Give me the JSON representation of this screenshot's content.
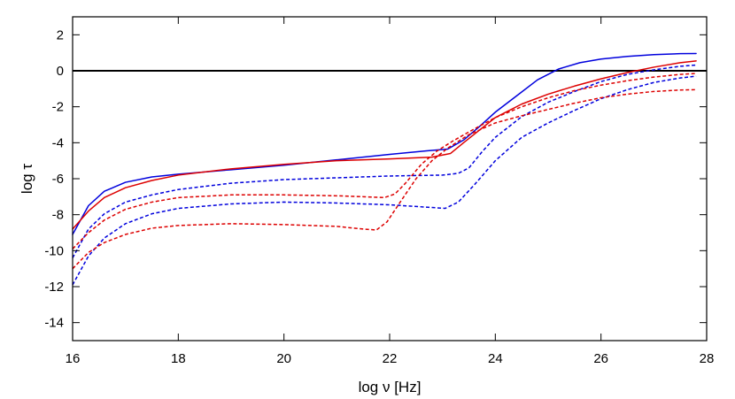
{
  "chart_data": {
    "type": "line",
    "title": "",
    "xlabel": "log ν [Hz]",
    "ylabel": "log τ",
    "xlim": [
      16,
      28
    ],
    "ylim": [
      -15,
      3
    ],
    "xticks": [
      16,
      18,
      20,
      22,
      24,
      26,
      28
    ],
    "yticks": [
      2,
      0,
      -2,
      -4,
      -6,
      -8,
      -10,
      -12,
      -14
    ],
    "xtick_labels": [
      "16",
      "18",
      "20",
      "22",
      "24",
      "26",
      "28"
    ],
    "ytick_labels": [
      "2",
      "0",
      "-2",
      "-4",
      "-6",
      "-8",
      "-10",
      "-12",
      "-14"
    ],
    "grid": false,
    "legend": "none",
    "reference_line": {
      "y": 0,
      "color": "#000000"
    },
    "series": [
      {
        "color": "#0000dd",
        "style": "solid",
        "points": [
          [
            16,
            -9.1
          ],
          [
            16.3,
            -7.5
          ],
          [
            16.6,
            -6.7
          ],
          [
            17,
            -6.2
          ],
          [
            17.5,
            -5.9
          ],
          [
            18,
            -5.75
          ],
          [
            19,
            -5.5
          ],
          [
            20,
            -5.25
          ],
          [
            21,
            -4.95
          ],
          [
            22,
            -4.65
          ],
          [
            22.7,
            -4.45
          ],
          [
            23.1,
            -4.35
          ],
          [
            23.4,
            -3.85
          ],
          [
            23.7,
            -3.1
          ],
          [
            24,
            -2.3
          ],
          [
            24.4,
            -1.4
          ],
          [
            24.8,
            -0.5
          ],
          [
            25.2,
            0.1
          ],
          [
            25.6,
            0.45
          ],
          [
            26,
            0.65
          ],
          [
            26.5,
            0.8
          ],
          [
            27,
            0.9
          ],
          [
            27.5,
            0.95
          ],
          [
            27.8,
            0.96
          ]
        ]
      },
      {
        "color": "#dd0000",
        "style": "solid",
        "points": [
          [
            16,
            -8.8
          ],
          [
            16.3,
            -7.8
          ],
          [
            16.6,
            -7.05
          ],
          [
            17,
            -6.5
          ],
          [
            17.5,
            -6.1
          ],
          [
            18,
            -5.8
          ],
          [
            19,
            -5.45
          ],
          [
            20,
            -5.2
          ],
          [
            21,
            -5.0
          ],
          [
            22,
            -4.9
          ],
          [
            22.8,
            -4.8
          ],
          [
            23.15,
            -4.6
          ],
          [
            23.4,
            -4.0
          ],
          [
            23.7,
            -3.3
          ],
          [
            24,
            -2.6
          ],
          [
            24.5,
            -1.85
          ],
          [
            25,
            -1.3
          ],
          [
            25.5,
            -0.85
          ],
          [
            26,
            -0.45
          ],
          [
            26.5,
            -0.1
          ],
          [
            27,
            0.2
          ],
          [
            27.5,
            0.45
          ],
          [
            27.8,
            0.55
          ]
        ]
      },
      {
        "color": "#0000dd",
        "style": "dashed",
        "points": [
          [
            16,
            -10.4
          ],
          [
            16.3,
            -8.8
          ],
          [
            16.6,
            -7.95
          ],
          [
            17,
            -7.3
          ],
          [
            17.5,
            -6.9
          ],
          [
            18,
            -6.6
          ],
          [
            19,
            -6.25
          ],
          [
            20,
            -6.05
          ],
          [
            21,
            -5.95
          ],
          [
            22,
            -5.85
          ],
          [
            23,
            -5.8
          ],
          [
            23.3,
            -5.7
          ],
          [
            23.5,
            -5.4
          ],
          [
            23.75,
            -4.5
          ],
          [
            24,
            -3.7
          ],
          [
            24.5,
            -2.55
          ],
          [
            25,
            -1.75
          ],
          [
            25.5,
            -1.15
          ],
          [
            26,
            -0.6
          ],
          [
            26.5,
            -0.2
          ],
          [
            27,
            0.05
          ],
          [
            27.5,
            0.25
          ],
          [
            27.8,
            0.32
          ]
        ]
      },
      {
        "color": "#dd0000",
        "style": "dashed",
        "points": [
          [
            16,
            -9.9
          ],
          [
            16.3,
            -9.0
          ],
          [
            16.6,
            -8.3
          ],
          [
            17,
            -7.7
          ],
          [
            17.5,
            -7.3
          ],
          [
            18,
            -7.05
          ],
          [
            19,
            -6.9
          ],
          [
            20,
            -6.9
          ],
          [
            21,
            -6.95
          ],
          [
            21.5,
            -7.0
          ],
          [
            21.9,
            -7.05
          ],
          [
            22.1,
            -6.85
          ],
          [
            22.3,
            -6.25
          ],
          [
            22.6,
            -5.2
          ],
          [
            22.9,
            -4.45
          ],
          [
            23.2,
            -3.9
          ],
          [
            23.5,
            -3.4
          ],
          [
            24,
            -2.6
          ],
          [
            24.5,
            -2.0
          ],
          [
            25,
            -1.5
          ],
          [
            25.5,
            -1.1
          ],
          [
            26,
            -0.8
          ],
          [
            26.5,
            -0.55
          ],
          [
            27,
            -0.35
          ],
          [
            27.5,
            -0.2
          ],
          [
            27.8,
            -0.15
          ]
        ]
      },
      {
        "color": "#0000dd",
        "style": "dashed",
        "points": [
          [
            16,
            -11.9
          ],
          [
            16.3,
            -10.3
          ],
          [
            16.6,
            -9.3
          ],
          [
            17,
            -8.5
          ],
          [
            17.5,
            -7.95
          ],
          [
            18,
            -7.65
          ],
          [
            19,
            -7.4
          ],
          [
            20,
            -7.3
          ],
          [
            21,
            -7.35
          ],
          [
            22,
            -7.45
          ],
          [
            22.8,
            -7.6
          ],
          [
            23.05,
            -7.65
          ],
          [
            23.3,
            -7.3
          ],
          [
            23.6,
            -6.35
          ],
          [
            24,
            -5.0
          ],
          [
            24.5,
            -3.7
          ],
          [
            25,
            -2.9
          ],
          [
            25.5,
            -2.2
          ],
          [
            26,
            -1.55
          ],
          [
            26.5,
            -1.05
          ],
          [
            27,
            -0.65
          ],
          [
            27.5,
            -0.4
          ],
          [
            27.8,
            -0.3
          ]
        ]
      },
      {
        "color": "#dd0000",
        "style": "dashed",
        "points": [
          [
            16,
            -11.0
          ],
          [
            16.3,
            -10.1
          ],
          [
            16.6,
            -9.55
          ],
          [
            17,
            -9.1
          ],
          [
            17.5,
            -8.75
          ],
          [
            18,
            -8.6
          ],
          [
            19,
            -8.5
          ],
          [
            20,
            -8.55
          ],
          [
            21,
            -8.65
          ],
          [
            21.5,
            -8.8
          ],
          [
            21.75,
            -8.85
          ],
          [
            21.95,
            -8.4
          ],
          [
            22.2,
            -7.3
          ],
          [
            22.5,
            -6.0
          ],
          [
            22.8,
            -5.0
          ],
          [
            23.1,
            -4.3
          ],
          [
            23.5,
            -3.55
          ],
          [
            24,
            -2.9
          ],
          [
            24.5,
            -2.5
          ],
          [
            25,
            -2.15
          ],
          [
            25.5,
            -1.8
          ],
          [
            26,
            -1.5
          ],
          [
            26.5,
            -1.3
          ],
          [
            27,
            -1.15
          ],
          [
            27.5,
            -1.07
          ],
          [
            27.8,
            -1.05
          ]
        ]
      }
    ]
  }
}
